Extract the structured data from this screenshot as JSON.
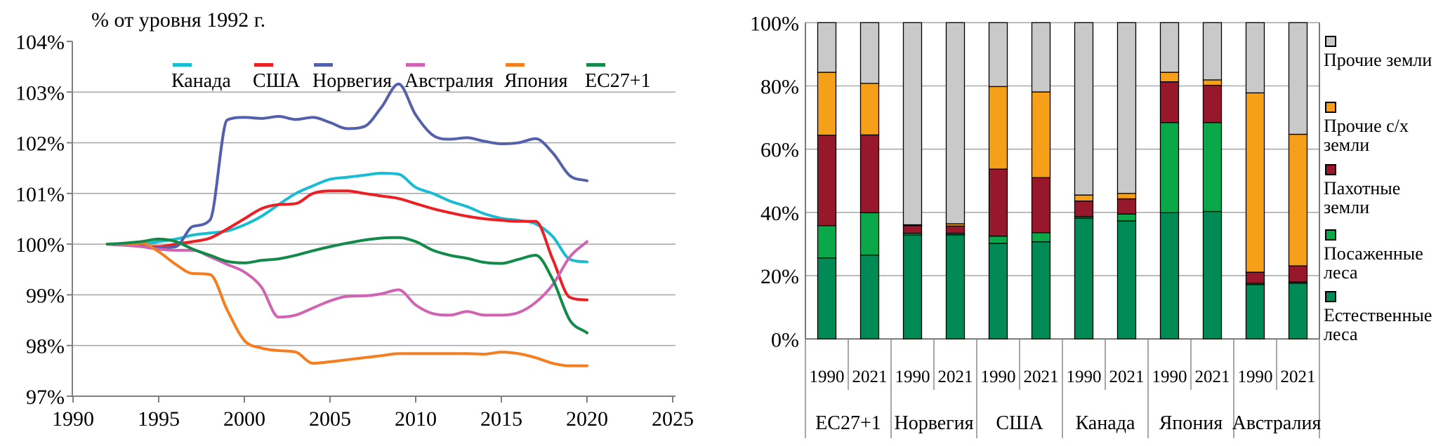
{
  "figure": {
    "bg": "#ffffff"
  },
  "chart_data": [
    {
      "type": "line",
      "title": "% от уровня 1992 г.",
      "xlabel": "",
      "ylabel": "",
      "ylim": [
        97,
        104
      ],
      "xlim": [
        1990,
        2025
      ],
      "grid": true,
      "legend_position": "top",
      "y_ticks": [
        {
          "v": 104,
          "label": "104%"
        },
        {
          "v": 103,
          "label": "103%"
        },
        {
          "v": 102,
          "label": "102%"
        },
        {
          "v": 101,
          "label": "101%"
        },
        {
          "v": 100,
          "label": "100%"
        },
        {
          "v": 99,
          "label": "99%"
        },
        {
          "v": 98,
          "label": "98%"
        },
        {
          "v": 97,
          "label": "97%"
        }
      ],
      "x_ticks": [
        {
          "v": 1990,
          "label": "1990"
        },
        {
          "v": 1995,
          "label": "1995"
        },
        {
          "v": 2000,
          "label": "2000"
        },
        {
          "v": 2005,
          "label": "2005"
        },
        {
          "v": 2010,
          "label": "2010"
        },
        {
          "v": 2015,
          "label": "2015"
        },
        {
          "v": 2020,
          "label": "2020"
        },
        {
          "v": 2025,
          "label": "2025"
        }
      ],
      "x": [
        1992,
        1993,
        1994,
        1995,
        1996,
        1997,
        1998,
        1999,
        2000,
        2001,
        2002,
        2003,
        2004,
        2005,
        2006,
        2007,
        2008,
        2009,
        2010,
        2011,
        2012,
        2013,
        2014,
        2015,
        2016,
        2017,
        2018,
        2019,
        2020
      ],
      "series": [
        {
          "name": "Канада",
          "color": "#1ABCD3",
          "values": [
            100,
            100,
            100,
            100.05,
            100.1,
            100.18,
            100.22,
            100.26,
            100.38,
            100.55,
            100.78,
            101.0,
            101.15,
            101.28,
            101.32,
            101.36,
            101.4,
            101.38,
            101.12,
            101.0,
            100.85,
            100.74,
            100.6,
            100.51,
            100.47,
            100.4,
            100.15,
            99.7,
            99.65
          ]
        },
        {
          "name": "США",
          "color": "#EC2024",
          "values": [
            100,
            99.98,
            99.96,
            99.95,
            100.0,
            100.05,
            100.12,
            100.3,
            100.5,
            100.7,
            100.78,
            100.8,
            101.0,
            101.05,
            101.05,
            101.0,
            100.95,
            100.9,
            100.8,
            100.7,
            100.62,
            100.55,
            100.5,
            100.47,
            100.45,
            100.45,
            99.7,
            98.95,
            98.9
          ]
        },
        {
          "name": "Норвегия",
          "color": "#5360AB",
          "values": [
            100,
            99.98,
            99.96,
            99.93,
            99.95,
            100.35,
            100.48,
            102.45,
            102.5,
            102.48,
            102.52,
            102.46,
            102.5,
            102.4,
            102.28,
            102.32,
            102.7,
            103.16,
            102.55,
            102.15,
            102.07,
            102.1,
            102.03,
            101.98,
            102.0,
            102.08,
            101.8,
            101.35,
            101.25
          ]
        },
        {
          "name": "Австралия",
          "color": "#D064B3",
          "values": [
            100,
            99.98,
            99.95,
            99.9,
            99.88,
            99.88,
            99.75,
            99.6,
            99.45,
            99.15,
            98.56,
            98.6,
            98.74,
            98.88,
            98.97,
            98.98,
            99.02,
            99.1,
            98.8,
            98.63,
            98.6,
            98.67,
            98.6,
            98.6,
            98.65,
            98.85,
            99.2,
            99.75,
            100.05
          ]
        },
        {
          "name": "Япония",
          "color": "#F57E21",
          "values": [
            100,
            100,
            100.02,
            99.85,
            99.6,
            99.42,
            99.4,
            98.7,
            98.1,
            97.95,
            97.9,
            97.87,
            97.65,
            97.68,
            97.72,
            97.76,
            97.8,
            97.84,
            97.84,
            97.84,
            97.84,
            97.84,
            97.83,
            97.87,
            97.84,
            97.76,
            97.65,
            97.6,
            97.6
          ]
        },
        {
          "name": "ЕС27+1",
          "color": "#128A49",
          "values": [
            100,
            100.02,
            100.05,
            100.1,
            100.05,
            99.9,
            99.78,
            99.66,
            99.63,
            99.68,
            99.71,
            99.78,
            99.87,
            99.95,
            100.02,
            100.08,
            100.12,
            100.13,
            100.05,
            99.88,
            99.78,
            99.72,
            99.64,
            99.62,
            99.7,
            99.78,
            99.3,
            98.5,
            98.25
          ]
        }
      ]
    },
    {
      "type": "bar",
      "subtype": "stacked_100",
      "title": "",
      "ylim": [
        0,
        100
      ],
      "grid": true,
      "legend_position": "right",
      "y_ticks": [
        {
          "v": 100,
          "label": "100%"
        },
        {
          "v": 80,
          "label": "80%"
        },
        {
          "v": 60,
          "label": "60%"
        },
        {
          "v": 40,
          "label": "40%"
        },
        {
          "v": 20,
          "label": "20%"
        },
        {
          "v": 0,
          "label": "0%"
        }
      ],
      "groups": [
        "ЕС27+1",
        "Норвегия",
        "США",
        "Канада",
        "Япония",
        "Австралия"
      ],
      "segments": [
        {
          "name": "Естественные леса",
          "color": "#008A55"
        },
        {
          "name": "Посаженные леса",
          "color": "#0BA84A"
        },
        {
          "name": "Пахотные земли",
          "color": "#97182B"
        },
        {
          "name": "Прочие с/х земли",
          "color": "#F6A019"
        },
        {
          "name": "Прочие земли",
          "color": "#C9C9C9"
        }
      ],
      "bars": [
        {
          "group": "ЕС27+1",
          "year": "1990",
          "values": [
            25.6,
            10.2,
            28.6,
            19.9,
            15.7
          ]
        },
        {
          "group": "ЕС27+1",
          "year": "2021",
          "values": [
            26.5,
            13.4,
            24.6,
            16.3,
            19.2
          ]
        },
        {
          "group": "Норвегия",
          "year": "1990",
          "values": [
            32.8,
            0.6,
            2.4,
            0.3,
            63.9
          ]
        },
        {
          "group": "Норвегия",
          "year": "2021",
          "values": [
            32.9,
            0.5,
            2.3,
            0.7,
            63.6
          ]
        },
        {
          "group": "США",
          "year": "1990",
          "values": [
            30.2,
            2.3,
            21.2,
            26.1,
            20.2
          ]
        },
        {
          "group": "США",
          "year": "2021",
          "values": [
            30.7,
            2.9,
            17.4,
            27.1,
            21.9
          ]
        },
        {
          "group": "Канада",
          "year": "1990",
          "values": [
            38.2,
            0.5,
            4.9,
            1.9,
            54.5
          ]
        },
        {
          "group": "Канада",
          "year": "2021",
          "values": [
            37.3,
            2.2,
            4.8,
            1.7,
            54.0
          ]
        },
        {
          "group": "Япония",
          "year": "1990",
          "values": [
            39.9,
            28.5,
            12.9,
            3.0,
            15.7
          ]
        },
        {
          "group": "Япония",
          "year": "2021",
          "values": [
            40.3,
            28.1,
            11.8,
            1.7,
            18.1
          ]
        },
        {
          "group": "Австралия",
          "year": "1990",
          "values": [
            17.2,
            0.4,
            3.5,
            56.7,
            22.2
          ]
        },
        {
          "group": "Австралия",
          "year": "2021",
          "values": [
            17.6,
            0.4,
            5.1,
            41.6,
            35.3
          ]
        }
      ],
      "legend": [
        {
          "lines": [
            "Прочие земли"
          ],
          "color": "#C9C9C9"
        },
        {
          "lines": [
            "Прочие с/х",
            "земли"
          ],
          "color": "#F6A019"
        },
        {
          "lines": [
            "Пахотные",
            "земли"
          ],
          "color": "#97182B"
        },
        {
          "lines": [
            "Посаженные",
            "леса"
          ],
          "color": "#0BA84A"
        },
        {
          "lines": [
            "Естественные",
            "леса"
          ],
          "color": "#008A55"
        }
      ]
    }
  ]
}
